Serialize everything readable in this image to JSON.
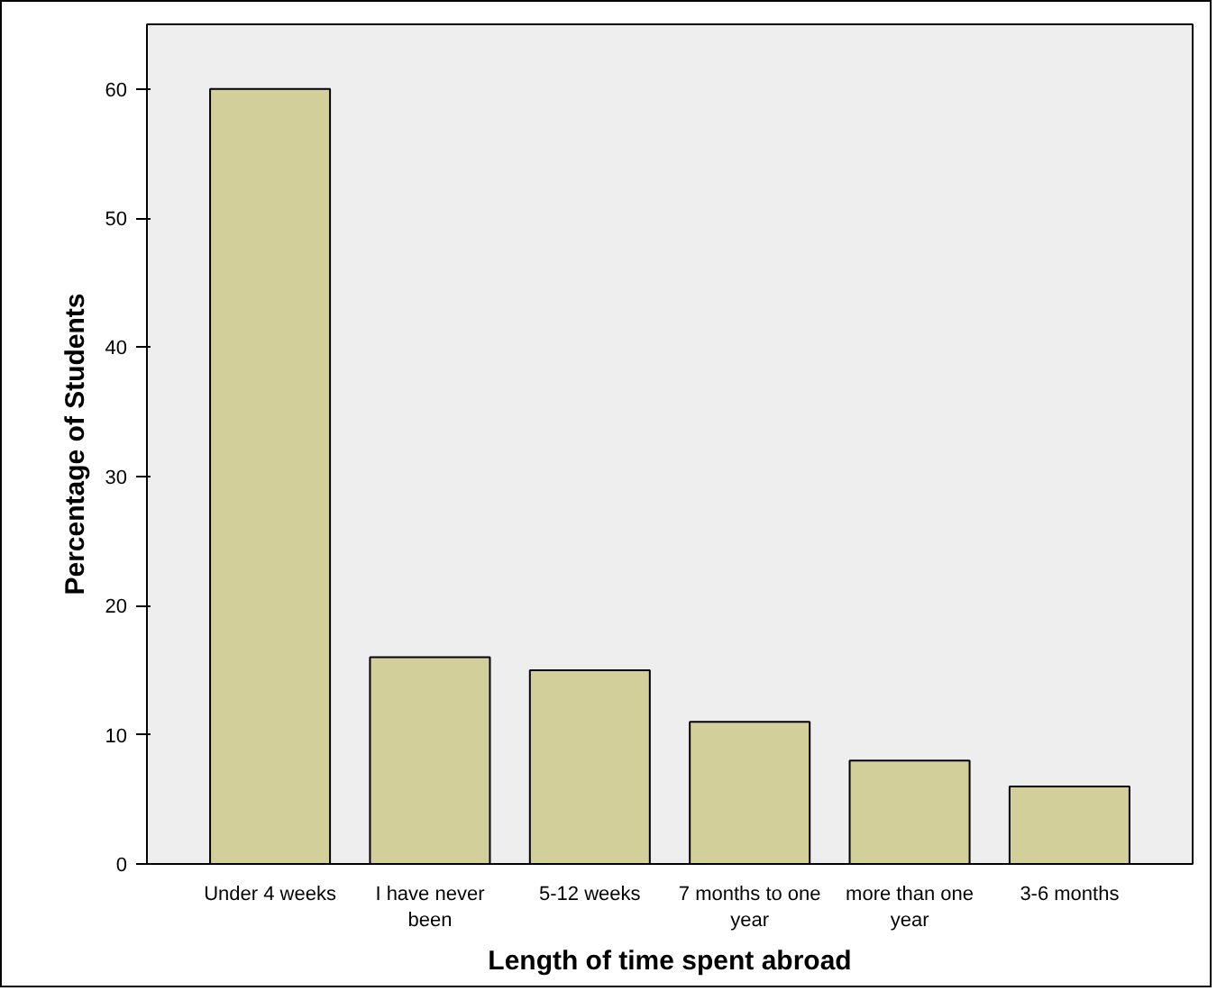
{
  "chart_data": {
    "type": "bar",
    "xlabel": "Length of time spent abroad",
    "ylabel": "Percentage of Students",
    "categories": [
      "Under 4 weeks",
      "I have never been",
      "5-12 weeks",
      "7 months to one year",
      "more than one year",
      "3-6 months"
    ],
    "values": [
      60,
      16,
      15,
      11,
      8,
      6
    ],
    "color": "#d3cf9b",
    "ylim": [
      0,
      65
    ],
    "yticks": [
      0,
      10,
      20,
      30,
      40,
      50,
      60
    ],
    "grid": false
  }
}
